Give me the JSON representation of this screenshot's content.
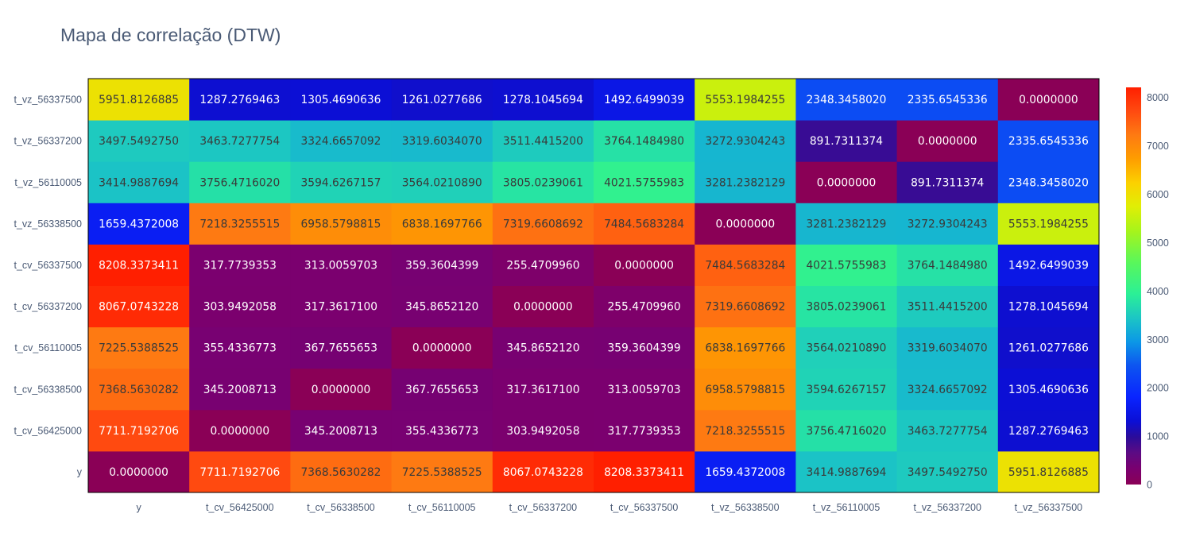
{
  "chart_data": {
    "type": "heatmap",
    "title": "Mapa de correlação (DTW)",
    "x_categories": [
      "y",
      "t_cv_56425000",
      "t_cv_56338500",
      "t_cv_56110005",
      "t_cv_56337200",
      "t_cv_56337500",
      "t_vz_56338500",
      "t_vz_56110005",
      "t_vz_56337200",
      "t_vz_56337500"
    ],
    "y_categories": [
      "y",
      "t_cv_56425000",
      "t_cv_56338500",
      "t_cv_56110005",
      "t_cv_56337200",
      "t_cv_56337500",
      "t_vz_56338500",
      "t_vz_56110005",
      "t_vz_56337200",
      "t_vz_56337500"
    ],
    "z": [
      [
        0.0,
        7711.7192706,
        7368.5630282,
        7225.5388525,
        8067.0743228,
        8208.3373411,
        1659.4372008,
        3414.9887694,
        3497.549275,
        5951.8126885
      ],
      [
        7711.7192706,
        0.0,
        345.2008713,
        355.4336773,
        303.9492058,
        317.7739353,
        7218.3255515,
        3756.471602,
        3463.7277754,
        1287.2769463
      ],
      [
        7368.5630282,
        345.2008713,
        0.0,
        367.7655653,
        317.36171,
        313.0059703,
        6958.5798815,
        3594.6267157,
        3324.6657092,
        1305.4690636
      ],
      [
        7225.5388525,
        355.4336773,
        367.7655653,
        0.0,
        345.865212,
        359.3604399,
        6838.1697766,
        3564.021089,
        3319.603407,
        1261.0277686
      ],
      [
        8067.0743228,
        303.9492058,
        317.36171,
        345.865212,
        0.0,
        255.470996,
        7319.6608692,
        3805.0239061,
        3511.44152,
        1278.1045694
      ],
      [
        8208.3373411,
        317.7739353,
        313.0059703,
        359.3604399,
        255.470996,
        0.0,
        7484.5683284,
        4021.5755983,
        3764.148498,
        1492.6499039
      ],
      [
        1659.4372008,
        7218.3255515,
        6958.5798815,
        6838.1697766,
        7319.6608692,
        7484.5683284,
        0.0,
        3281.2382129,
        3272.9304243,
        5553.1984255
      ],
      [
        3414.9887694,
        3756.471602,
        3594.6267157,
        3564.021089,
        3805.0239061,
        4021.5755983,
        3281.2382129,
        0.0,
        891.7311374,
        2348.345802
      ],
      [
        3497.549275,
        3463.7277754,
        3324.6657092,
        3319.603407,
        3511.44152,
        3764.148498,
        3272.9304243,
        891.7311374,
        0.0,
        2335.6545336
      ],
      [
        5951.8126885,
        1287.2769463,
        1305.4690636,
        1261.0277686,
        1278.1045694,
        1492.6499039,
        5553.1984255,
        2348.345802,
        2335.6545336,
        0.0
      ]
    ],
    "zmin": 0,
    "zmax": 8208.3373411,
    "colorscale_stops": [
      [
        0.0,
        "#8a0056"
      ],
      [
        0.04,
        "#7a0070"
      ],
      [
        0.08,
        "#5c0b84"
      ],
      [
        0.12,
        "#2a0c9a"
      ],
      [
        0.16,
        "#0b0fd6"
      ],
      [
        0.22,
        "#0a24ff"
      ],
      [
        0.3,
        "#0d55f0"
      ],
      [
        0.36,
        "#0c98e6"
      ],
      [
        0.42,
        "#1cc6c4"
      ],
      [
        0.48,
        "#2bf096"
      ],
      [
        0.56,
        "#5af75a"
      ],
      [
        0.64,
        "#a8f41a"
      ],
      [
        0.7,
        "#e0ee05"
      ],
      [
        0.76,
        "#fcd000"
      ],
      [
        0.82,
        "#fe9d00"
      ],
      [
        0.88,
        "#fe7a12"
      ],
      [
        0.94,
        "#ff4a10"
      ],
      [
        1.0,
        "#ff1f00"
      ]
    ],
    "colorbar_ticks": [
      0,
      1000,
      2000,
      3000,
      4000,
      5000,
      6000,
      7000,
      8000
    ],
    "colorbar_tick_labels": [
      "0",
      "1000",
      "2000",
      "3000",
      "4000",
      "5000",
      "6000",
      "7000",
      "8000"
    ],
    "colorbar_position": "right"
  }
}
